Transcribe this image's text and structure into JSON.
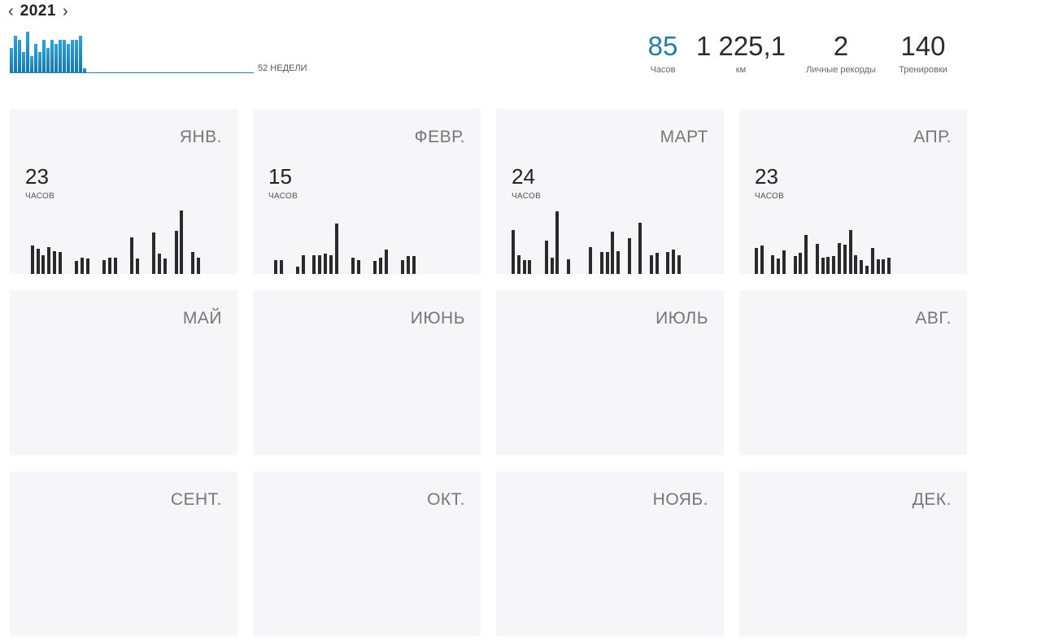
{
  "year_nav": {
    "prev_icon": "chevron-left-icon",
    "year": "2021",
    "next_icon": "chevron-right-icon"
  },
  "weekly_summary": {
    "label": "52 НЕДЕЛИ",
    "week_values": [
      6,
      9,
      8,
      5,
      10,
      4,
      7,
      5,
      8,
      6,
      8,
      7,
      8,
      8,
      7,
      8,
      8,
      9,
      1
    ],
    "color": "#1f8fc8"
  },
  "stats": [
    {
      "value": "85",
      "label": "Часов",
      "accent": true
    },
    {
      "value": "1 225,1",
      "label": "км",
      "accent": false
    },
    {
      "value": "2",
      "label": "Личные рекорды",
      "accent": false
    },
    {
      "value": "140",
      "label": "Тренировки",
      "accent": false
    }
  ],
  "months": [
    {
      "name": "ЯНВ.",
      "hours": "23",
      "unit": "ЧАСОВ",
      "daily": [
        0,
        0.45,
        0.4,
        0.3,
        0.42,
        0.36,
        0.34,
        0,
        0,
        0.2,
        0.26,
        0.24,
        0,
        0,
        0.22,
        0.26,
        0.26,
        0,
        0,
        0.58,
        0.24,
        0,
        0,
        0.66,
        0.32,
        0.24,
        0,
        0.68,
        1,
        0,
        0.34,
        0.26
      ]
    },
    {
      "name": "ФЕВР.",
      "hours": "15",
      "unit": "ЧАСОВ",
      "daily": [
        0,
        0.22,
        0.22,
        0,
        0,
        0.11,
        0.3,
        0,
        0.3,
        0.3,
        0.32,
        0.3,
        0.8,
        0,
        0,
        0.26,
        0.22,
        0,
        0,
        0.2,
        0.26,
        0.38,
        0,
        0,
        0.22,
        0.28,
        0.28
      ]
    },
    {
      "name": "МАРТ",
      "hours": "24",
      "unit": "ЧАСОВ",
      "daily": [
        0.69,
        0.3,
        0.22,
        0.22,
        0,
        0,
        0.52,
        0.26,
        0.99,
        0,
        0.23,
        0,
        0,
        0,
        0.42,
        0,
        0.34,
        0.34,
        0.67,
        0.36,
        0,
        0.57,
        0,
        0.81,
        0,
        0.3,
        0.33,
        0,
        0.35,
        0.38,
        0.3
      ]
    },
    {
      "name": "АПР.",
      "hours": "23",
      "unit": "ЧАСОВ",
      "daily": [
        0.41,
        0.45,
        0,
        0.3,
        0.24,
        0.37,
        0,
        0.28,
        0.33,
        0.62,
        0,
        0.47,
        0.25,
        0.27,
        0.28,
        0.49,
        0.46,
        0.69,
        0.3,
        0.22,
        0.13,
        0.41,
        0.23,
        0.23,
        0.25
      ]
    },
    {
      "name": "МАЙ"
    },
    {
      "name": "ИЮНЬ"
    },
    {
      "name": "ИЮЛЬ"
    },
    {
      "name": "АВГ."
    },
    {
      "name": "СЕНТ."
    },
    {
      "name": "ОКТ."
    },
    {
      "name": "НОЯБ."
    },
    {
      "name": "ДЕК."
    }
  ]
}
